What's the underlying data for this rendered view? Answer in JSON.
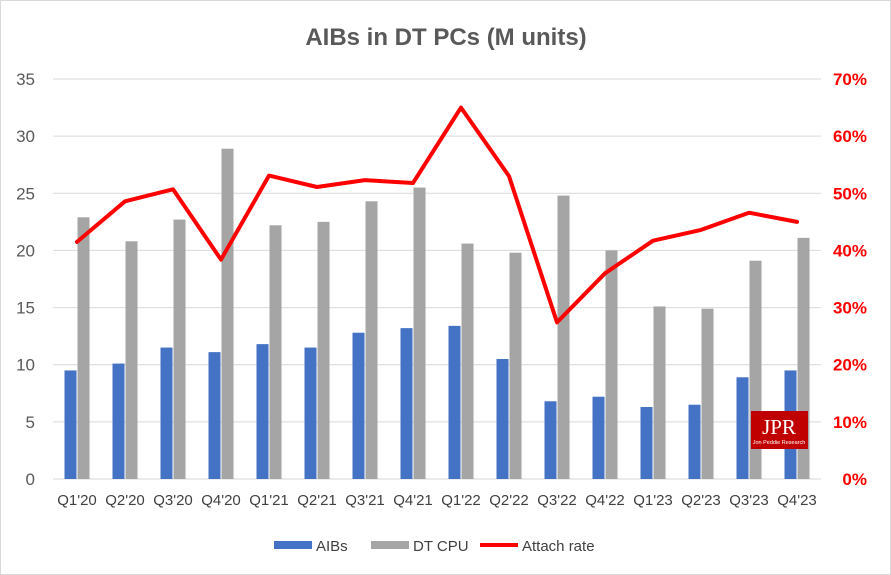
{
  "chart_data": {
    "type": "bar",
    "title": "AIBs in DT PCs (M units)",
    "categories": [
      "Q1'20",
      "Q2'20",
      "Q3'20",
      "Q4'20",
      "Q1'21",
      "Q2'21",
      "Q3'21",
      "Q4'21",
      "Q1'22",
      "Q2'22",
      "Q3'22",
      "Q4'22",
      "Q1'23",
      "Q2'23",
      "Q3'23",
      "Q4'23"
    ],
    "series": [
      {
        "name": "AIBs",
        "type": "bar",
        "axis": "left",
        "color": "#4472c4",
        "values": [
          9.5,
          10.1,
          11.5,
          11.1,
          11.8,
          11.5,
          12.8,
          13.2,
          13.4,
          10.5,
          6.8,
          7.2,
          6.3,
          6.5,
          8.9,
          9.5
        ]
      },
      {
        "name": "DT CPU",
        "type": "bar",
        "axis": "left",
        "color": "#a5a5a5",
        "values": [
          22.9,
          20.8,
          22.7,
          28.9,
          22.2,
          22.5,
          24.3,
          25.5,
          20.6,
          19.8,
          24.8,
          20.0,
          15.1,
          14.9,
          19.1,
          21.1
        ]
      },
      {
        "name": "Attach rate",
        "type": "line",
        "axis": "right",
        "color": "#ff0000",
        "values": [
          41.5,
          48.6,
          50.7,
          38.4,
          53.1,
          51.1,
          52.3,
          51.8,
          65.0,
          53.0,
          27.4,
          36.0,
          41.7,
          43.6,
          46.6,
          45.0
        ]
      }
    ],
    "y_left": {
      "ylim": [
        0,
        35
      ],
      "ticks": [
        "0",
        "5",
        "10",
        "15",
        "20",
        "25",
        "30",
        "35"
      ]
    },
    "y_right": {
      "ylim": [
        0,
        70
      ],
      "ticks": [
        "0%",
        "10%",
        "20%",
        "30%",
        "40%",
        "50%",
        "60%",
        "70%"
      ]
    },
    "grid": true,
    "legend": "bottom"
  },
  "logo": {
    "main": "JPR",
    "sub": "Jon Peddie Research"
  }
}
